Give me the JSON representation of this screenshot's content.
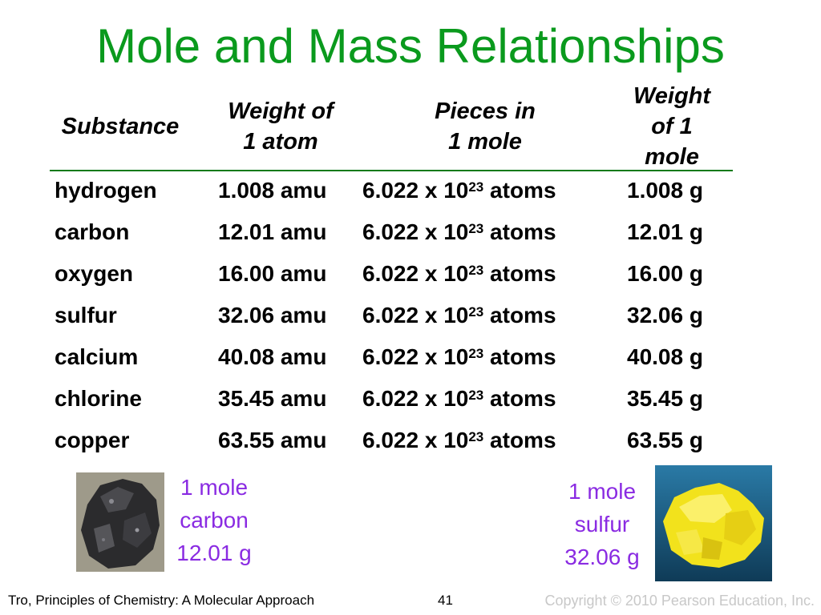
{
  "title": "Mole and Mass Relationships",
  "table": {
    "headers": {
      "substance": "Substance",
      "weight_atom": [
        "Weight of",
        "1 atom"
      ],
      "pieces": [
        "Pieces in",
        "1 mole"
      ],
      "weight_mole": [
        "Weight",
        "of 1",
        "mole"
      ]
    },
    "rows": [
      {
        "substance": "hydrogen",
        "atom": "1.008 amu",
        "pieces_base": "6.022 x 10",
        "pieces_exp": "23",
        "pieces_unit": " atoms",
        "mole": "1.008 g"
      },
      {
        "substance": "carbon",
        "atom": "12.01 amu",
        "pieces_base": "6.022 x 10",
        "pieces_exp": "23",
        "pieces_unit": " atoms",
        "mole": "12.01 g"
      },
      {
        "substance": "oxygen",
        "atom": "16.00 amu",
        "pieces_base": "6.022 x 10",
        "pieces_exp": "23",
        "pieces_unit": " atoms",
        "mole": "16.00 g"
      },
      {
        "substance": "sulfur",
        "atom": "32.06 amu",
        "pieces_base": "6.022 x 10",
        "pieces_exp": "23",
        "pieces_unit": " atoms",
        "mole": "32.06 g"
      },
      {
        "substance": "calcium",
        "atom": "40.08 amu",
        "pieces_base": "6.022 x 10",
        "pieces_exp": "23",
        "pieces_unit": " atoms",
        "mole": "40.08 g"
      },
      {
        "substance": "chlorine",
        "atom": "35.45 amu",
        "pieces_base": "6.022 x 10",
        "pieces_exp": "23",
        "pieces_unit": " atoms",
        "mole": "35.45 g"
      },
      {
        "substance": "copper",
        "atom": "63.55 amu",
        "pieces_base": "6.022 x 10",
        "pieces_exp": "23",
        "pieces_unit": " atoms",
        "mole": "63.55 g"
      }
    ]
  },
  "captions": {
    "carbon": [
      "1 mole",
      "carbon",
      "12.01 g"
    ],
    "sulfur": [
      "1 mole",
      "sulfur",
      "32.06 g"
    ]
  },
  "footer": {
    "source": "Tro, Principles of Chemistry: A Molecular Approach",
    "page": "41",
    "copyright": "Copyright © 2010 Pearson Education, Inc."
  },
  "colors": {
    "title": "#0a9a1d",
    "caption": "#8a2be2",
    "rule": "#0a7a1a"
  }
}
